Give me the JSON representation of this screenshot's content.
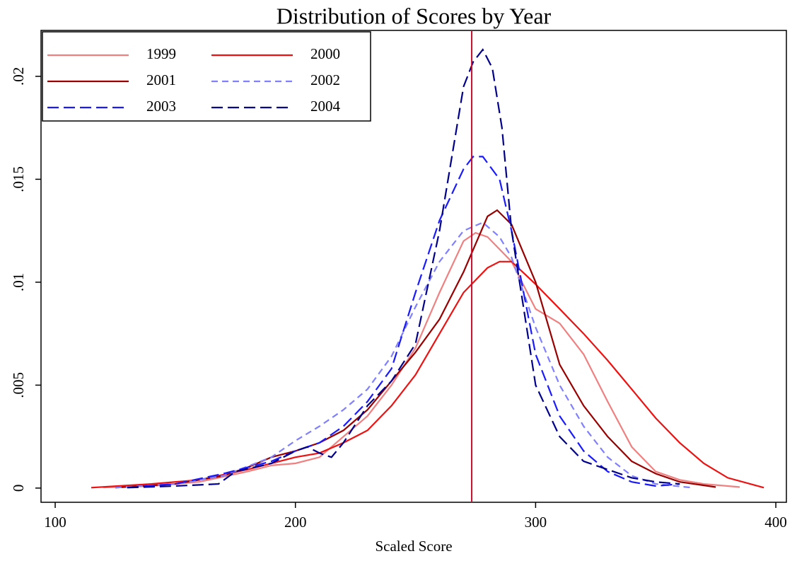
{
  "chart_data": {
    "type": "line",
    "title": "Distribution of Scores by Year",
    "x_label": "Scaled Score",
    "xlim": [
      94.1,
      404.4
    ],
    "xticks": [
      100,
      200,
      300,
      400
    ],
    "ylim": [
      -0.00069,
      0.02223
    ],
    "yticks": [
      0,
      {
        "value": 0.005,
        "label": ".005"
      },
      {
        "value": 0.01,
        "label": ".01"
      },
      {
        "value": 0.015,
        "label": ".015"
      },
      {
        "value": 0.02,
        "label": ".02"
      }
    ],
    "vline": 273.4,
    "vline_color": "#c8102e",
    "legend": "upper left",
    "legend_columns": 2,
    "grid": false,
    "series": [
      {
        "name": "1999",
        "color": "#f08080",
        "dash": false,
        "x": [
          120,
          140,
          160,
          180,
          190,
          200,
          210,
          220,
          230,
          240,
          250,
          260,
          270,
          275,
          280,
          290,
          300,
          310,
          320,
          330,
          340,
          350,
          360,
          370,
          385
        ],
        "values": [
          3e-05,
          0.0001,
          0.0003,
          0.0008,
          0.0011,
          0.0012,
          0.0015,
          0.0025,
          0.0035,
          0.005,
          0.0068,
          0.0095,
          0.012,
          0.0124,
          0.0122,
          0.011,
          0.0087,
          0.008,
          0.0065,
          0.0042,
          0.002,
          0.0008,
          0.0004,
          0.0002,
          5e-05
        ]
      },
      {
        "name": "2000",
        "color": "#ee1111",
        "dash": false,
        "x": [
          115,
          140,
          160,
          180,
          200,
          210,
          220,
          230,
          240,
          250,
          260,
          270,
          280,
          285,
          290,
          300,
          310,
          320,
          330,
          340,
          350,
          360,
          370,
          380,
          395
        ],
        "values": [
          2e-05,
          0.0002,
          0.0004,
          0.0009,
          0.0015,
          0.0017,
          0.0022,
          0.0028,
          0.004,
          0.0055,
          0.0075,
          0.0095,
          0.0107,
          0.011,
          0.011,
          0.0099,
          0.0087,
          0.0075,
          0.0062,
          0.0048,
          0.0034,
          0.0022,
          0.0012,
          0.0005,
          2e-05
        ]
      },
      {
        "name": "2001",
        "color": "#990000",
        "dash": false,
        "x": [
          125,
          150,
          170,
          180,
          190,
          200,
          210,
          220,
          230,
          240,
          250,
          260,
          270,
          280,
          284,
          290,
          300,
          310,
          320,
          330,
          340,
          350,
          360,
          375
        ],
        "values": [
          2e-05,
          0.0002,
          0.0006,
          0.001,
          0.0015,
          0.0018,
          0.0022,
          0.0028,
          0.0038,
          0.0052,
          0.0066,
          0.0082,
          0.0105,
          0.0132,
          0.0135,
          0.0128,
          0.01,
          0.006,
          0.004,
          0.0025,
          0.0013,
          0.0007,
          0.0003,
          5e-05
        ]
      },
      {
        "name": "2002",
        "color": "#8080ff",
        "dash": "short",
        "x": [
          125,
          150,
          170,
          190,
          200,
          210,
          220,
          230,
          240,
          250,
          260,
          270,
          278,
          285,
          290,
          300,
          310,
          320,
          330,
          340,
          350,
          365
        ],
        "values": [
          2e-05,
          0.0002,
          0.0006,
          0.0015,
          0.0023,
          0.003,
          0.0038,
          0.0048,
          0.0064,
          0.0088,
          0.011,
          0.0125,
          0.0129,
          0.0122,
          0.0112,
          0.0078,
          0.005,
          0.003,
          0.0015,
          0.0006,
          0.0002,
          2e-05
        ]
      },
      {
        "name": "2003",
        "color": "#1a1aff",
        "dash": "long",
        "x": [
          130,
          150,
          170,
          190,
          200,
          210,
          220,
          230,
          240,
          250,
          260,
          270,
          274,
          278,
          285,
          290,
          300,
          310,
          320,
          330,
          340,
          350,
          360
        ],
        "values": [
          3e-05,
          0.0002,
          0.0007,
          0.0013,
          0.0018,
          0.0022,
          0.003,
          0.0042,
          0.0058,
          0.0095,
          0.013,
          0.0155,
          0.0161,
          0.0161,
          0.015,
          0.0125,
          0.0065,
          0.0035,
          0.0018,
          0.0008,
          0.0003,
          0.0001,
          0.0002
        ]
      },
      {
        "name": "2004",
        "color": "#00008b",
        "dash": "long",
        "x": [
          130,
          150,
          168,
          175,
          190,
          200,
          205,
          210,
          215,
          220,
          230,
          240,
          250,
          260,
          270,
          274,
          278,
          282,
          286,
          290,
          300,
          310,
          320,
          330,
          340,
          350,
          360
        ],
        "values": [
          2e-05,
          0.0001,
          0.0002,
          0.0008,
          0.0012,
          0.0018,
          0.002,
          0.0017,
          0.0015,
          0.0022,
          0.004,
          0.0052,
          0.007,
          0.0125,
          0.0195,
          0.0207,
          0.0213,
          0.0204,
          0.0175,
          0.0125,
          0.005,
          0.0025,
          0.0013,
          0.0009,
          0.0005,
          0.0003,
          0.0002
        ]
      }
    ]
  }
}
